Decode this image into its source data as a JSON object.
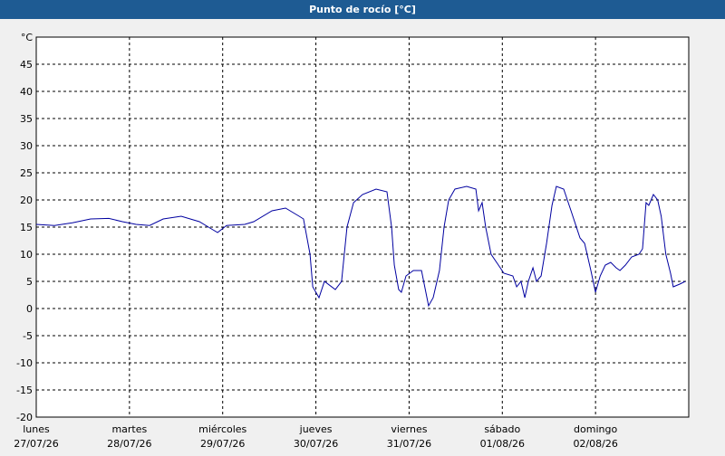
{
  "chart_data": {
    "type": "line",
    "title": "Punto de rocío [°C]",
    "xlim": [
      0,
      168
    ],
    "xticks": [
      {
        "value": 0,
        "label": "lunes",
        "sublabel": "27/07/26"
      },
      {
        "value": 24,
        "label": "martes",
        "sublabel": "28/07/26"
      },
      {
        "value": 48,
        "label": "miércoles",
        "sublabel": "29/07/26"
      },
      {
        "value": 72,
        "label": "jueves",
        "sublabel": "30/07/26"
      },
      {
        "value": 96,
        "label": "viernes",
        "sublabel": "31/07/26"
      },
      {
        "value": 120,
        "label": "sábado",
        "sublabel": "01/08/26"
      },
      {
        "value": 144,
        "label": "domingo",
        "sublabel": "02/08/26"
      }
    ],
    "ylim": [
      -20,
      50
    ],
    "yticks": [
      -20,
      -15,
      -10,
      -5,
      0,
      5,
      10,
      15,
      20,
      25,
      30,
      35,
      40,
      45,
      {
        "value": 50,
        "label": "°C"
      }
    ],
    "grid": true,
    "series": [
      {
        "color": "#0000a0",
        "x": [
          0,
          4.7,
          9.3,
          14,
          18.7,
          22.2,
          25.7,
          29.2,
          32.7,
          37.3,
          42,
          45.5,
          46.7,
          49,
          53.7,
          56,
          60.7,
          64.2,
          67.7,
          68.8,
          70.5,
          71.2,
          72.8,
          74.2,
          77,
          78.6,
          80,
          81.7,
          84,
          87.5,
          90.3,
          91.5,
          92.2,
          93.3,
          94,
          95.2,
          97.1,
          99.2,
          101,
          102.2,
          103.8,
          105,
          106.2,
          107.8,
          110.8,
          113.2,
          113.9,
          114.8,
          115.7,
          117.1,
          119,
          120.4,
          122.7,
          123.7,
          124.8,
          125.8,
          126.7,
          127.9,
          128.8,
          130,
          131.4,
          132.8,
          133.9,
          135.8,
          137.7,
          140,
          141.2,
          142.8,
          144,
          145.2,
          146.5,
          147.9,
          149.3,
          150.3,
          151.7,
          153.3,
          155.2,
          156.1,
          157,
          157.7,
          158.9,
          160,
          160.9,
          162.1,
          163.3,
          164,
          165.7,
          167.1
        ],
        "values": [
          15.5,
          15.3,
          15.8,
          16.5,
          16.6,
          16,
          15.5,
          15.3,
          16.5,
          17,
          16,
          14.5,
          14,
          15.3,
          15.5,
          16,
          18,
          18.5,
          17,
          16.5,
          10,
          4,
          2,
          5,
          3.5,
          5,
          15,
          19.5,
          21,
          22,
          21.5,
          15,
          8,
          3.5,
          3,
          6,
          7,
          7,
          0.5,
          2,
          7,
          15,
          20,
          22,
          22.5,
          22,
          18,
          19.5,
          15,
          10,
          8,
          6.5,
          6,
          4,
          5,
          2,
          5,
          7.5,
          5,
          6,
          12,
          19,
          22.5,
          22,
          18,
          13,
          12,
          7,
          3,
          6,
          8,
          8.5,
          7.5,
          7,
          8,
          9.5,
          10,
          11,
          19.5,
          19,
          21,
          20,
          17,
          10,
          6.5,
          4,
          4.5,
          5
        ]
      }
    ]
  }
}
